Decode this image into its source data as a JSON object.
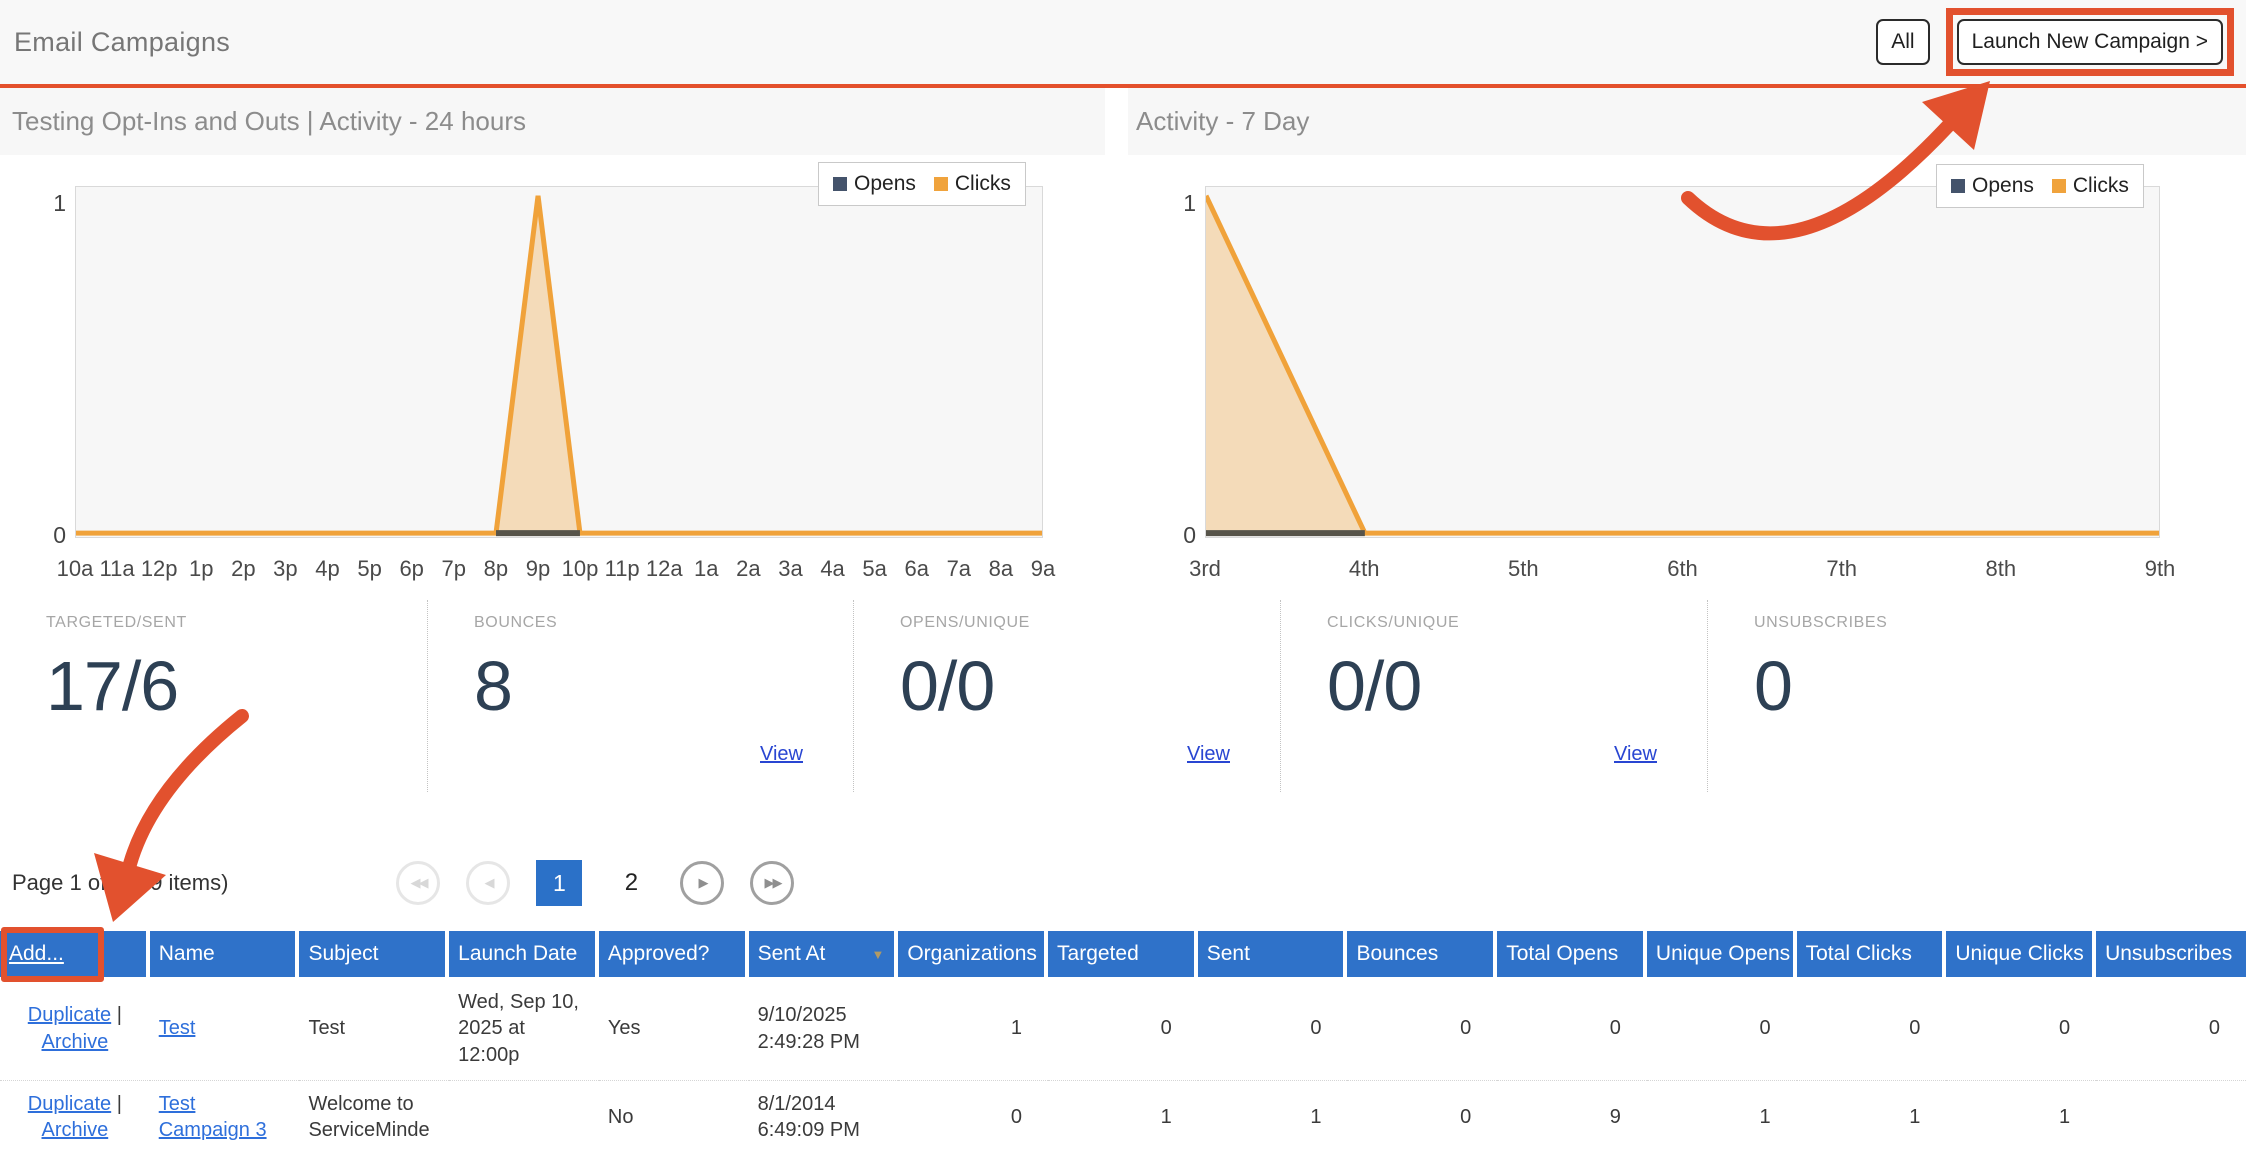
{
  "annotations": {
    "color": "#e2512e"
  },
  "header": {
    "title": "Email Campaigns",
    "all_button": "All",
    "launch_button": "Launch New Campaign >"
  },
  "icons": {
    "first_page": "◀◀",
    "prev_page": "◀",
    "next_page": "▶",
    "last_page": "▶▶",
    "sort_desc": "▼"
  },
  "charts": [
    {
      "title": "Testing Opt-Ins and Outs | Activity - 24 hours",
      "legend": [
        {
          "label": "Opens",
          "color": "#44536b"
        },
        {
          "label": "Clicks",
          "color": "#f0a33c"
        }
      ],
      "y_ticks": [
        "1",
        "0"
      ],
      "x_labels": [
        "10a",
        "11a",
        "12p",
        "1p",
        "2p",
        "3p",
        "4p",
        "5p",
        "6p",
        "7p",
        "8p",
        "9p",
        "10p",
        "11p",
        "12a",
        "1a",
        "2a",
        "3a",
        "4a",
        "5a",
        "6a",
        "7a",
        "8a",
        "9a"
      ],
      "chart_data": {
        "type": "area",
        "categories": [
          "10a",
          "11a",
          "12p",
          "1p",
          "2p",
          "3p",
          "4p",
          "5p",
          "6p",
          "7p",
          "8p",
          "9p",
          "10p",
          "11p",
          "12a",
          "1a",
          "2a",
          "3a",
          "4a",
          "5a",
          "6a",
          "7a",
          "8a",
          "9a"
        ],
        "series": [
          {
            "name": "Opens",
            "values": [
              0,
              0,
              0,
              0,
              0,
              0,
              0,
              0,
              0,
              0,
              0,
              0,
              0,
              0,
              0,
              0,
              0,
              0,
              0,
              0,
              0,
              0,
              0,
              0
            ],
            "visible_range": [
              10,
              12
            ]
          },
          {
            "name": "Clicks",
            "values": [
              0,
              0,
              0,
              0,
              0,
              0,
              0,
              0,
              0,
              0,
              0,
              1,
              0,
              0,
              0,
              0,
              0,
              0,
              0,
              0,
              0,
              0,
              0,
              0
            ]
          }
        ],
        "ylim": [
          0,
          1
        ],
        "grid": false,
        "legend_position": "top-right",
        "line_color": "#f0a23a",
        "fill_color": "rgba(240,163,60,0.33)",
        "opens_color": "#57544a"
      }
    },
    {
      "title": "Activity - 7 Day",
      "legend": [
        {
          "label": "Opens",
          "color": "#44536b"
        },
        {
          "label": "Clicks",
          "color": "#f0a33c"
        }
      ],
      "y_ticks": [
        "1",
        "0"
      ],
      "x_labels": [
        "3rd",
        "4th",
        "5th",
        "6th",
        "7th",
        "8th",
        "9th"
      ],
      "chart_data": {
        "type": "area",
        "categories": [
          "3rd",
          "4th",
          "5th",
          "6th",
          "7th",
          "8th",
          "9th"
        ],
        "series": [
          {
            "name": "Opens",
            "values": [
              0,
              0,
              0,
              0,
              0,
              0,
              0
            ],
            "visible_range": [
              0,
              1
            ]
          },
          {
            "name": "Clicks",
            "values": [
              1,
              0,
              0,
              0,
              0,
              0,
              0
            ]
          }
        ],
        "ylim": [
          0,
          1
        ],
        "grid": false,
        "legend_position": "top-right",
        "line_color": "#f0a23a",
        "fill_color": "rgba(240,163,60,0.33)",
        "opens_color": "#57544a"
      }
    }
  ],
  "stats": [
    {
      "label": "TARGETED/SENT",
      "value": "17/6",
      "view_label": ""
    },
    {
      "label": "BOUNCES",
      "value": "8",
      "view_label": "View"
    },
    {
      "label": "OPENS/UNIQUE",
      "value": "0/0",
      "view_label": "View"
    },
    {
      "label": "CLICKS/UNIQUE",
      "value": "0/0",
      "view_label": "View"
    },
    {
      "label": "UNSUBSCRIBES",
      "value": "0",
      "view_label": ""
    }
  ],
  "pagination": {
    "summary": "Page 1 of 2 (29 items)",
    "current_page": "1",
    "other_page": "2"
  },
  "table": {
    "columns": [
      "Add...",
      "Name",
      "Subject",
      "Launch Date",
      "Approved?",
      "Sent At",
      "Organizations",
      "Targeted",
      "Sent",
      "Bounces",
      "Total Opens",
      "Unique Opens",
      "Total Clicks",
      "Unique Clicks",
      "Unsubscribes"
    ],
    "action_separator": "|",
    "rows": [
      {
        "duplicate": "Duplicate",
        "archive": "Archive",
        "name": "Test",
        "subject": "Test",
        "launch_date": "Wed, Sep 10, 2025 at 12:00p",
        "approved": "Yes",
        "sent_at": "9/10/2025 2:49:28 PM",
        "organizations": "1",
        "targeted": "0",
        "sent": "0",
        "bounces": "0",
        "total_opens": "0",
        "unique_opens": "0",
        "total_clicks": "0",
        "unique_clicks": "0",
        "unsubscribes": "0"
      },
      {
        "duplicate": "Duplicate",
        "archive": "Archive",
        "name": "Test Campaign 3",
        "subject": "Welcome to ServiceMinde",
        "launch_date": "",
        "approved": "No",
        "sent_at": "8/1/2014 6:49:09 PM",
        "organizations": "0",
        "targeted": "1",
        "sent": "1",
        "bounces": "0",
        "total_opens": "9",
        "unique_opens": "1",
        "total_clicks": "1",
        "unique_clicks": "1",
        "unsubscribes": ""
      }
    ]
  }
}
